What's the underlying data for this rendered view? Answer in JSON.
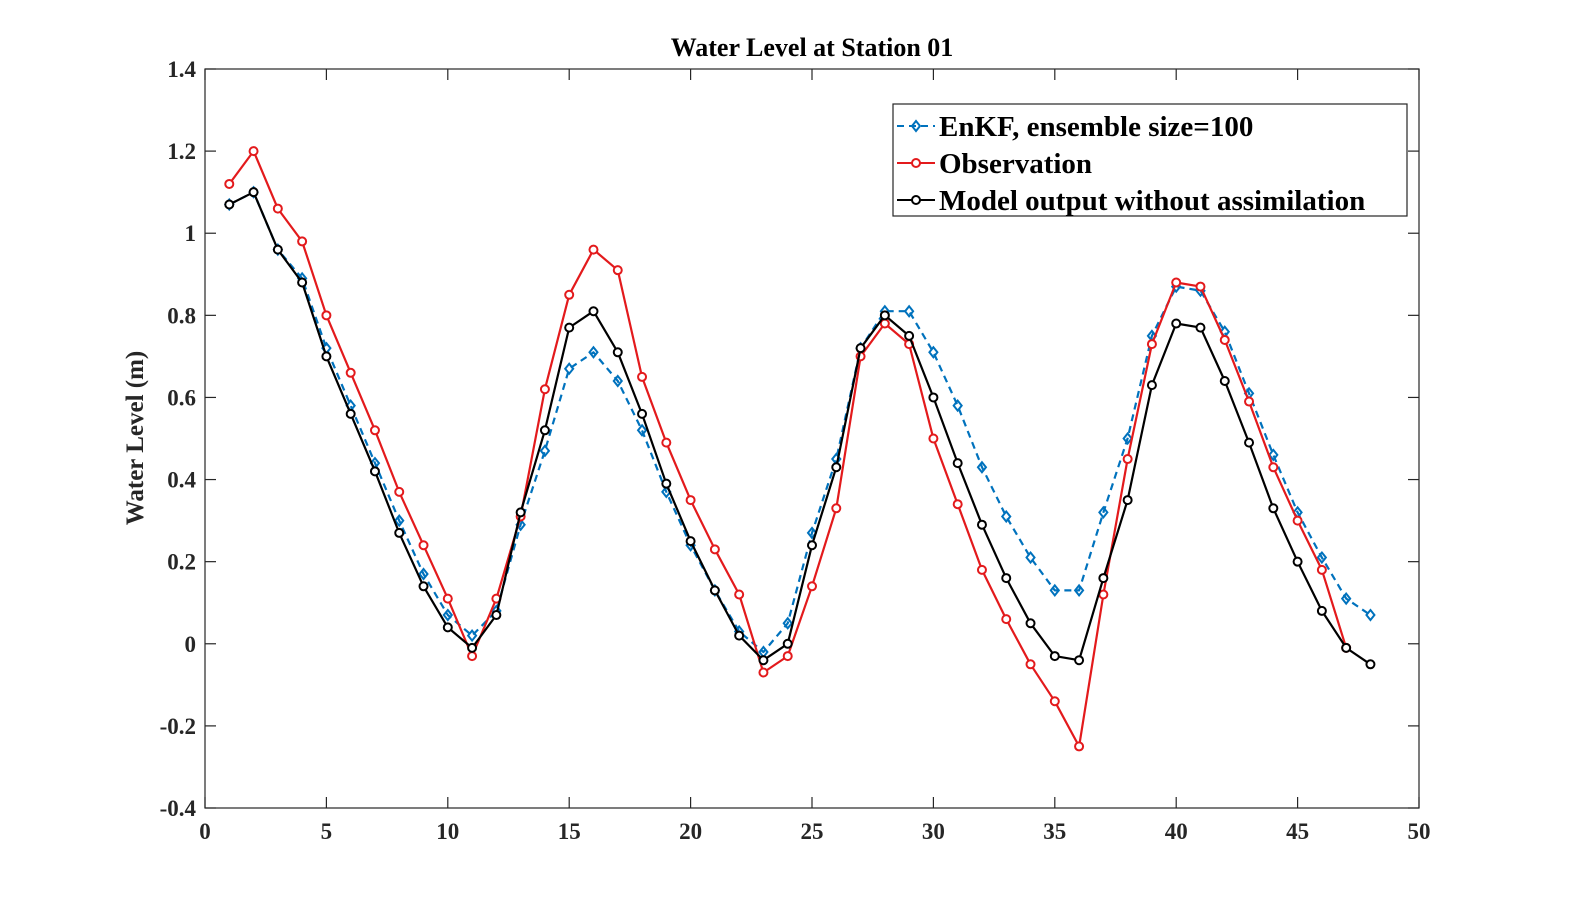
{
  "chart_data": {
    "type": "line",
    "title": "Water Level at Station 01",
    "xlabel": "",
    "ylabel": "Water Level (m)",
    "xlim": [
      0,
      50
    ],
    "ylim": [
      -0.4,
      1.4
    ],
    "xticks": [
      "0",
      "5",
      "10",
      "15",
      "20",
      "25",
      "30",
      "35",
      "40",
      "45",
      "50"
    ],
    "yticks": [
      "-0.4",
      "-0.2",
      "0",
      "0.2",
      "0.4",
      "0.6",
      "0.8",
      "1",
      "1.2",
      "1.4"
    ],
    "grid": false,
    "legend_position": "top-right",
    "x": [
      1,
      2,
      3,
      4,
      5,
      6,
      7,
      8,
      9,
      10,
      11,
      12,
      13,
      14,
      15,
      16,
      17,
      18,
      19,
      20,
      21,
      22,
      23,
      24,
      25,
      26,
      27,
      28,
      29,
      30,
      31,
      32,
      33,
      34,
      35,
      36,
      37,
      38,
      39,
      40,
      41,
      42,
      43,
      44,
      45,
      46,
      47,
      48
    ],
    "series": [
      {
        "name": "EnKF, ensemble size=100",
        "color": "#0072BD",
        "style": "dashed",
        "marker": "diamond",
        "values": [
          1.07,
          1.1,
          0.96,
          0.89,
          0.72,
          0.58,
          0.44,
          0.3,
          0.17,
          0.07,
          0.02,
          0.08,
          0.29,
          0.47,
          0.67,
          0.71,
          0.64,
          0.52,
          0.37,
          0.24,
          0.13,
          0.03,
          -0.02,
          0.05,
          0.27,
          0.45,
          0.72,
          0.81,
          0.81,
          0.71,
          0.58,
          0.43,
          0.31,
          0.21,
          0.13,
          0.13,
          0.32,
          0.5,
          0.75,
          0.87,
          0.86,
          0.76,
          0.61,
          0.46,
          0.32,
          0.21,
          0.11,
          0.07
        ]
      },
      {
        "name": "Observation",
        "color": "#E31A1C",
        "style": "solid",
        "marker": "circle",
        "values": [
          1.12,
          1.2,
          1.06,
          0.98,
          0.8,
          0.66,
          0.52,
          0.37,
          0.24,
          0.11,
          -0.03,
          0.11,
          0.31,
          0.62,
          0.85,
          0.96,
          0.91,
          0.65,
          0.49,
          0.35,
          0.23,
          0.12,
          -0.07,
          -0.03,
          0.14,
          0.33,
          0.7,
          0.78,
          0.73,
          0.5,
          0.34,
          0.18,
          0.06,
          -0.05,
          -0.14,
          -0.25,
          0.12,
          0.45,
          0.73,
          0.88,
          0.87,
          0.74,
          0.59,
          0.43,
          0.3,
          0.18,
          -0.01,
          null
        ]
      },
      {
        "name": "Model output without assimilation",
        "color": "#000000",
        "style": "solid",
        "marker": "circle",
        "values": [
          1.07,
          1.1,
          0.96,
          0.88,
          0.7,
          0.56,
          0.42,
          0.27,
          0.14,
          0.04,
          -0.01,
          0.07,
          0.32,
          0.52,
          0.77,
          0.81,
          0.71,
          0.56,
          0.39,
          0.25,
          0.13,
          0.02,
          -0.04,
          0.0,
          0.24,
          0.43,
          0.72,
          0.8,
          0.75,
          0.6,
          0.44,
          0.29,
          0.16,
          0.05,
          -0.03,
          -0.04,
          0.16,
          0.35,
          0.63,
          0.78,
          0.77,
          0.64,
          0.49,
          0.33,
          0.2,
          0.08,
          -0.01,
          -0.05
        ]
      }
    ]
  }
}
